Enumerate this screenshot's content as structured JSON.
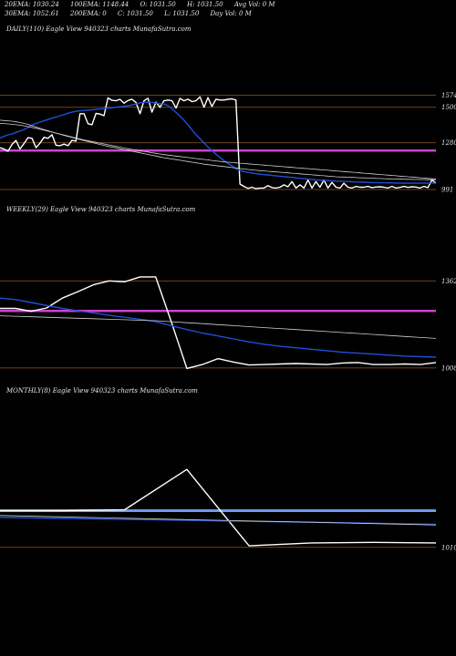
{
  "header": {
    "row1": [
      "20EMA: 1030.24",
      "100EMA: 1148.44",
      "O: 1031.50",
      "H: 1031.50",
      "Avg Vol: 0  M"
    ],
    "row2": [
      "30EMA: 1052.61",
      "200EMA: 0",
      "C: 1031.50",
      "L: 1031.50",
      "Day Vol: 0  M"
    ]
  },
  "panels": [
    {
      "label": "DAILY(110) Eagle   View  940323 charts MunafaSutra.com"
    },
    {
      "label": "WEEKLY(29) Eagle   View  940323 charts MunafaSutra.com"
    },
    {
      "label": "MONTHLY(8) Eagle   View  940323 charts MunafaSutra.com"
    }
  ],
  "colors": {
    "background": "#000000",
    "price": "#ffffff",
    "ema_fast": "#1f4fd8",
    "ema_slow": "#cfcfcf",
    "level": "#8b5a2b",
    "support": "#cc44cc",
    "monthly_band": "#6a9be8"
  },
  "chart_data": [
    {
      "type": "line",
      "name": "daily",
      "ylim": [
        991,
        1600
      ],
      "levels": [
        1574,
        1500,
        1280,
        991
      ],
      "level_labels": [
        "1574",
        "1500",
        "1280",
        "991"
      ],
      "support_level": 1232,
      "series": [
        {
          "values": [
            1250,
            1242,
            1228,
            1270,
            1295,
            1242,
            1275,
            1312,
            1308,
            1250,
            1278,
            1314,
            1308,
            1330,
            1265,
            1262,
            1272,
            1262,
            1295,
            1290,
            1460,
            1460,
            1398,
            1392,
            1462,
            1458,
            1448,
            1558,
            1543,
            1540,
            1549,
            1525,
            1542,
            1550,
            1530,
            1460,
            1540,
            1556,
            1470,
            1532,
            1500,
            1540,
            1545,
            1540,
            1495,
            1555,
            1540,
            1550,
            1535,
            1540,
            1565,
            1500,
            1560,
            1505,
            1550,
            1545,
            1545,
            1550,
            1552,
            1545,
            1025,
            1010,
            998,
            1005,
            996,
            1000,
            1000,
            1015,
            1003,
            1000,
            1005,
            1020,
            1008,
            1040,
            1000,
            1020,
            1000,
            1050,
            1000,
            1040,
            1005,
            1050,
            1000,
            1035,
            1005,
            1000,
            1030,
            1005,
            1000,
            1010,
            1005,
            1005,
            1010,
            1003,
            1006,
            1008,
            1005,
            1000,
            1010,
            1000,
            1004,
            1010,
            1004,
            1008,
            1006,
            1000,
            1010,
            1003,
            1050,
            1031
          ]
        },
        {
          "values": [
            1310,
            1320,
            1330,
            1335,
            1345,
            1352,
            1362,
            1375,
            1390,
            1400,
            1408,
            1416,
            1424,
            1432,
            1440,
            1448,
            1455,
            1463,
            1470,
            1475,
            1478,
            1480,
            1482,
            1485,
            1487,
            1489,
            1492,
            1494,
            1497,
            1500,
            1503,
            1506,
            1510,
            1514,
            1520,
            1528,
            1530,
            1532,
            1530,
            1526,
            1522,
            1520,
            1510,
            1490,
            1468,
            1445,
            1420,
            1392,
            1360,
            1330,
            1305,
            1280,
            1255,
            1232,
            1210,
            1190,
            1170,
            1152,
            1137,
            1120,
            1110,
            1102,
            1097,
            1093,
            1089,
            1086,
            1083,
            1081,
            1078,
            1076,
            1073,
            1071,
            1068,
            1066,
            1063,
            1060,
            1058,
            1055,
            1053,
            1051,
            1049,
            1047,
            1046,
            1045,
            1043,
            1042,
            1041,
            1040,
            1039,
            1038,
            1037,
            1036,
            1035,
            1034,
            1034,
            1033,
            1033,
            1032,
            1032,
            1031,
            1031,
            1030,
            1030,
            1030,
            1030,
            1030,
            1030,
            1030,
            1030,
            1030
          ]
        },
        {
          "values": [
            1420,
            1418,
            1416,
            1414,
            1410,
            1406,
            1400,
            1394,
            1386,
            1378,
            1370,
            1362,
            1355,
            1347,
            1340,
            1333,
            1326,
            1320,
            1313,
            1307,
            1300,
            1294,
            1288,
            1282,
            1276,
            1270,
            1264,
            1258,
            1253,
            1248,
            1243,
            1238,
            1233,
            1228,
            1223,
            1218,
            1213,
            1208,
            1203,
            1198,
            1193,
            1188,
            1184,
            1180,
            1176,
            1172,
            1168,
            1164,
            1160,
            1156,
            1152,
            1148,
            1145,
            1142,
            1139,
            1136,
            1133,
            1130,
            1127,
            1124,
            1121,
            1118,
            1115,
            1112,
            1110,
            1108,
            1106,
            1104,
            1102,
            1100,
            1098,
            1096,
            1094,
            1092,
            1090,
            1088,
            1086,
            1084,
            1082,
            1080,
            1078,
            1076,
            1074,
            1072,
            1070,
            1069,
            1068,
            1067,
            1066,
            1065,
            1064,
            1063,
            1062,
            1061,
            1060,
            1059,
            1058,
            1057,
            1056,
            1056,
            1055,
            1055,
            1054,
            1054,
            1053,
            1053,
            1053,
            1052,
            1052,
            1052
          ]
        },
        {
          "values": [
            1400,
            1399,
            1397,
            1395,
            1392,
            1389,
            1385,
            1380,
            1375,
            1370,
            1364,
            1358,
            1352,
            1346,
            1340,
            1334,
            1328,
            1322,
            1316,
            1310,
            1304,
            1298,
            1293,
            1288,
            1283,
            1278,
            1273,
            1268,
            1263,
            1258,
            1253,
            1248,
            1243,
            1239,
            1235,
            1231,
            1227,
            1223,
            1219,
            1215,
            1211,
            1207,
            1204,
            1201,
            1198,
            1195,
            1192,
            1189,
            1186,
            1183,
            1180,
            1177,
            1174,
            1171,
            1168,
            1165,
            1162,
            1160,
            1158,
            1156,
            1154,
            1152,
            1150,
            1148,
            1146,
            1144,
            1142,
            1140,
            1138,
            1136,
            1134,
            1132,
            1130,
            1128,
            1126,
            1124,
            1122,
            1120,
            1118,
            1116,
            1114,
            1112,
            1110,
            1108,
            1106,
            1104,
            1102,
            1100,
            1098,
            1096,
            1094,
            1092,
            1090,
            1088,
            1086,
            1084,
            1082,
            1080,
            1078,
            1076,
            1074,
            1072,
            1070,
            1068,
            1066,
            1064,
            1062,
            1060,
            1058,
            1056
          ]
        }
      ]
    },
    {
      "type": "line",
      "name": "weekly",
      "ylim": [
        1000,
        1400
      ],
      "levels": [
        1362,
        1008
      ],
      "level_labels": [
        "1362",
        "1008"
      ],
      "support_level": 1240,
      "series": [
        {
          "values": [
            1250,
            1250,
            1238,
            1252,
            1292,
            1318,
            1346,
            1362,
            1358,
            1378,
            1378,
            1196,
            1006,
            1022,
            1046,
            1032,
            1020,
            1022,
            1024,
            1026,
            1024,
            1022,
            1028,
            1030,
            1022,
            1022,
            1024,
            1022,
            1030
          ]
        },
        {
          "values": [
            1292,
            1286,
            1274,
            1262,
            1250,
            1240,
            1232,
            1222,
            1214,
            1206,
            1196,
            1180,
            1164,
            1150,
            1138,
            1126,
            1114,
            1104,
            1096,
            1090,
            1084,
            1078,
            1072,
            1068,
            1064,
            1060,
            1056,
            1054,
            1052
          ]
        },
        {
          "values": [
            1220,
            1218,
            1216,
            1214,
            1212,
            1210,
            1208,
            1206,
            1204,
            1202,
            1200,
            1196,
            1192,
            1188,
            1184,
            1180,
            1176,
            1172,
            1168,
            1164,
            1160,
            1156,
            1152,
            1148,
            1144,
            1140,
            1136,
            1132,
            1128
          ]
        }
      ]
    },
    {
      "type": "line",
      "name": "monthly",
      "ylim": [
        990,
        1500
      ],
      "levels": [
        1010
      ],
      "level_labels": [
        "1010"
      ],
      "support_level": 1200,
      "series": [
        {
          "values": [
            1200,
            1200,
            1205,
            1414,
            1018,
            1033,
            1036,
            1033
          ]
        },
        {
          "values": [
            1165,
            1160,
            1155,
            1150,
            1145,
            1140,
            1135,
            1130
          ]
        },
        {
          "values": [
            1175,
            1168,
            1161,
            1154,
            1147,
            1140,
            1133,
            1126
          ]
        }
      ]
    }
  ]
}
